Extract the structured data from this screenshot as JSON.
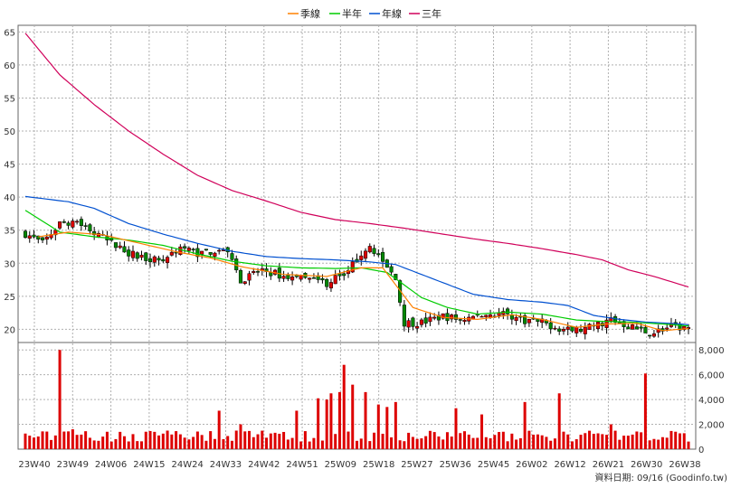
{
  "legend": [
    {
      "label": "季線",
      "color": "#ff8000"
    },
    {
      "label": "半年",
      "color": "#00cc00"
    },
    {
      "label": "年線",
      "color": "#0050d0"
    },
    {
      "label": "三年",
      "color": "#d0005a"
    }
  ],
  "footer": {
    "text": "資料日期: 09/16 (Goodinfo.tw)"
  },
  "colors": {
    "up": "#dd0000",
    "down": "#008800",
    "volume": "#dd0000",
    "grid": "#b0b0b0"
  },
  "chart_data": {
    "type": "candlestick+line+bar",
    "x_ticks": [
      "23W40",
      "23W49",
      "24W06",
      "24W15",
      "24W24",
      "24W33",
      "24W42",
      "24W51",
      "25W09",
      "25W18",
      "25W27",
      "25W36",
      "25W45",
      "26W02",
      "26W12",
      "26W21",
      "26W30",
      "26W38"
    ],
    "price_axis": {
      "ylim": [
        18,
        66
      ],
      "ticks": [
        20,
        25,
        30,
        35,
        40,
        45,
        50,
        55,
        60,
        65
      ],
      "side": "left"
    },
    "volume_axis": {
      "ylim": [
        0,
        8600
      ],
      "ticks": [
        "0",
        "2,000",
        "4,000",
        "6,000",
        "8,000"
      ],
      "tick_values": [
        0,
        2000,
        4000,
        6000,
        8000
      ],
      "side": "right"
    },
    "weeks": 155,
    "close_anchors": [
      [
        0,
        34.5
      ],
      [
        4,
        33
      ],
      [
        8,
        36
      ],
      [
        12,
        36.5
      ],
      [
        16,
        34.5
      ],
      [
        20,
        33
      ],
      [
        26,
        31
      ],
      [
        32,
        30.5
      ],
      [
        36,
        32.5
      ],
      [
        40,
        31.5
      ],
      [
        45,
        32
      ],
      [
        48,
        31
      ],
      [
        50,
        27.5
      ],
      [
        55,
        29
      ],
      [
        60,
        28
      ],
      [
        66,
        27.5
      ],
      [
        70,
        27
      ],
      [
        75,
        29
      ],
      [
        80,
        33
      ],
      [
        82,
        31
      ],
      [
        86,
        27.5
      ],
      [
        88,
        21
      ],
      [
        92,
        21
      ],
      [
        97,
        22
      ],
      [
        101,
        21.5
      ],
      [
        105,
        22
      ],
      [
        111,
        22.5
      ],
      [
        115,
        21.5
      ],
      [
        120,
        21
      ],
      [
        126,
        19.8
      ],
      [
        130,
        20
      ],
      [
        136,
        21.5
      ],
      [
        140,
        20.5
      ],
      [
        145,
        19.5
      ],
      [
        150,
        20.3
      ],
      [
        154,
        20.2
      ]
    ],
    "ma_quarter_anchors": [
      [
        3,
        34
      ],
      [
        10,
        34.7
      ],
      [
        18,
        34.3
      ],
      [
        28,
        32.8
      ],
      [
        36,
        31.6
      ],
      [
        43,
        30.8
      ],
      [
        50,
        29.5
      ],
      [
        60,
        28.3
      ],
      [
        70,
        28
      ],
      [
        78,
        29.3
      ],
      [
        83,
        29.3
      ],
      [
        90,
        23.3
      ],
      [
        97,
        21.8
      ],
      [
        105,
        21.5
      ],
      [
        113,
        22.2
      ],
      [
        120,
        21.5
      ],
      [
        128,
        20.3
      ],
      [
        135,
        20.8
      ],
      [
        142,
        20.9
      ],
      [
        148,
        19.8
      ],
      [
        154,
        20.1
      ]
    ],
    "ma_half_anchors": [
      [
        0,
        38
      ],
      [
        8,
        34.7
      ],
      [
        16,
        34
      ],
      [
        24,
        33.5
      ],
      [
        32,
        32.7
      ],
      [
        40,
        31.4
      ],
      [
        48,
        30.3
      ],
      [
        56,
        29.6
      ],
      [
        64,
        29.3
      ],
      [
        72,
        29.2
      ],
      [
        78,
        29.3
      ],
      [
        84,
        28.6
      ],
      [
        92,
        24.8
      ],
      [
        98,
        23.3
      ],
      [
        105,
        22.3
      ],
      [
        112,
        22.6
      ],
      [
        120,
        22.3
      ],
      [
        128,
        21.4
      ],
      [
        134,
        21.2
      ],
      [
        140,
        21.1
      ],
      [
        148,
        20.8
      ],
      [
        154,
        20.5
      ]
    ],
    "ma_year_anchors": [
      [
        0,
        40.1
      ],
      [
        10,
        39.3
      ],
      [
        16,
        38.3
      ],
      [
        24,
        36
      ],
      [
        32,
        34.4
      ],
      [
        40,
        33
      ],
      [
        48,
        31.8
      ],
      [
        56,
        31
      ],
      [
        64,
        30.7
      ],
      [
        72,
        30.5
      ],
      [
        80,
        30.2
      ],
      [
        86,
        29.8
      ],
      [
        92,
        28.3
      ],
      [
        98,
        26.8
      ],
      [
        104,
        25.3
      ],
      [
        112,
        24.5
      ],
      [
        120,
        24.1
      ],
      [
        126,
        23.6
      ],
      [
        132,
        22.1
      ],
      [
        138,
        21.5
      ],
      [
        144,
        21.1
      ],
      [
        150,
        20.9
      ],
      [
        154,
        20.7
      ]
    ],
    "ma_3year_anchors": [
      [
        0,
        64.8
      ],
      [
        8,
        58.5
      ],
      [
        16,
        54
      ],
      [
        24,
        50
      ],
      [
        32,
        46.5
      ],
      [
        40,
        43.3
      ],
      [
        48,
        41
      ],
      [
        56,
        39.4
      ],
      [
        64,
        37.7
      ],
      [
        72,
        36.6
      ],
      [
        80,
        36
      ],
      [
        88,
        35.3
      ],
      [
        96,
        34.5
      ],
      [
        104,
        33.7
      ],
      [
        112,
        33
      ],
      [
        120,
        32.2
      ],
      [
        128,
        31.3
      ],
      [
        134,
        30.5
      ],
      [
        140,
        29
      ],
      [
        146,
        28
      ],
      [
        150,
        27.2
      ],
      [
        154,
        26.4
      ]
    ],
    "volume_spikes": {
      "8": 8000,
      "11": 1600,
      "45": 3100,
      "50": 2000,
      "63": 3100,
      "68": 4100,
      "70": 4000,
      "71": 4500,
      "73": 4600,
      "74": 6800,
      "76": 5200,
      "79": 4600,
      "82": 3600,
      "84": 3400,
      "86": 3800,
      "100": 3300,
      "106": 2800,
      "116": 3800,
      "124": 4500,
      "136": 2000,
      "144": 6100
    },
    "volume_base": 600
  }
}
